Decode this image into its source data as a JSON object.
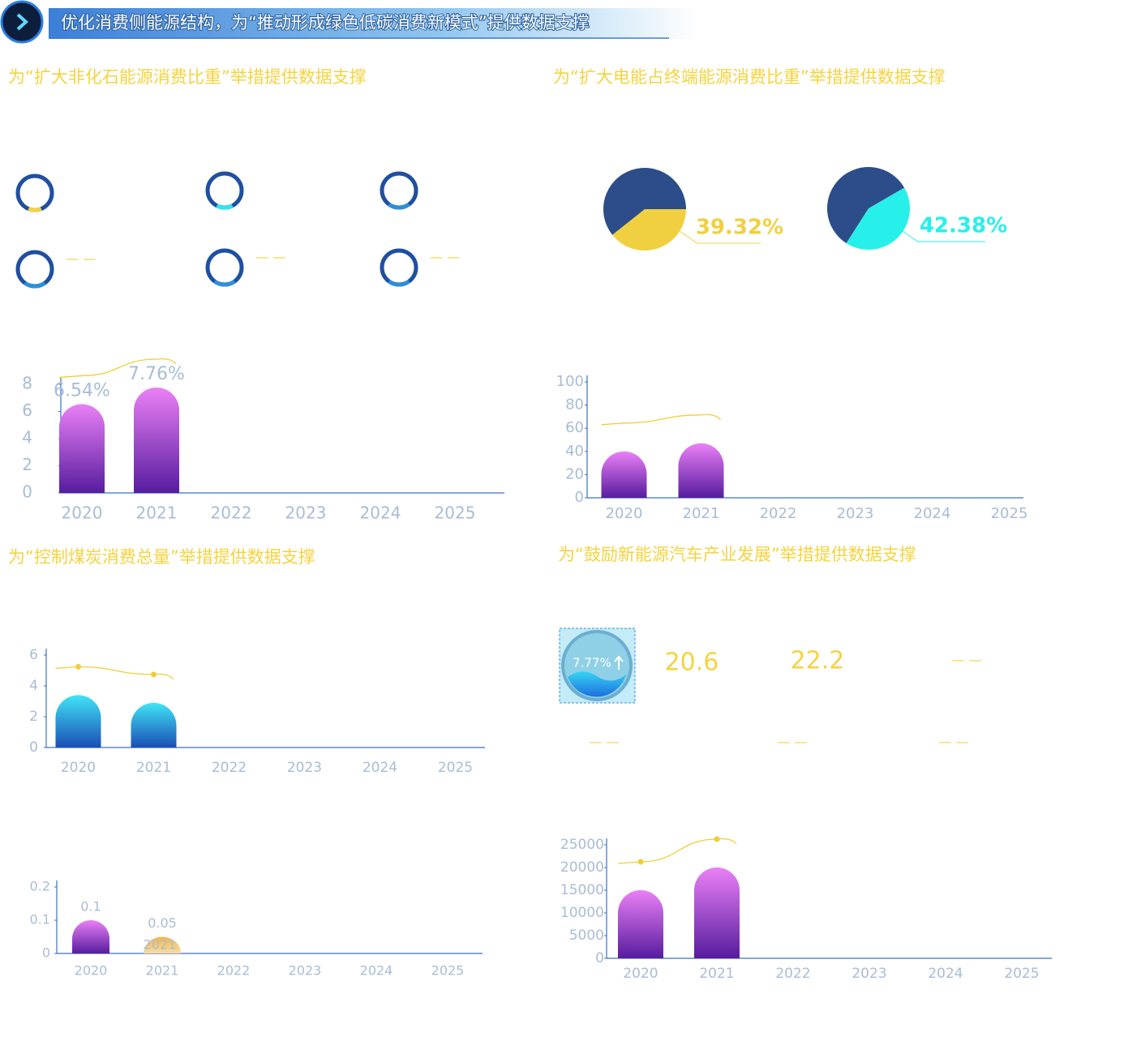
{
  "header": {
    "title": "优化消费侧能源结构，为“推动形成绿色低碳消费新模式”提供数据支撑"
  },
  "panels": [
    {
      "title": "为“扩大非化石能源消费比重”举措提供数据支撑"
    },
    {
      "title": "为“扩大电能占终端能源消费比重”举措提供数据支撑"
    },
    {
      "title": "为“控制煤炭消费总量”举措提供数据支撑"
    },
    {
      "title": "为“鼓励新能源汽车产业发展”举措提供数据支撑"
    }
  ],
  "rings": [
    {
      "value": 12,
      "color": "#f5d33f"
    },
    {
      "value": 15,
      "color": "#27e8f0"
    },
    {
      "value": 20,
      "color": "#2f8fd8"
    },
    {
      "value": 20,
      "color": "#2f8fd8",
      "text": "— —"
    },
    {
      "value": 20,
      "color": "#2f8fd8",
      "text": "— —"
    },
    {
      "value": 20,
      "color": "#2f8fd8",
      "text": "— —"
    }
  ],
  "badge": {
    "value": 7.77,
    "label": "7.77%"
  },
  "stats": [
    {
      "value": 20.6
    },
    {
      "value": 22.2
    },
    {
      "text": "— —"
    },
    {
      "text": "— —"
    },
    {
      "text": "— —"
    },
    {
      "text": "— —"
    }
  ],
  "chart_data": [
    {
      "type": "pie",
      "values": [
        39.32,
        60.68
      ],
      "value_labels": [
        "39.32%",
        null
      ],
      "colors": [
        "#f0d040",
        "#2c4d8a"
      ]
    },
    {
      "type": "pie",
      "values": [
        42.38,
        57.62
      ],
      "value_labels": [
        "42.38%",
        null
      ],
      "colors": [
        "#27f0ea",
        "#2c4d8a"
      ]
    },
    {
      "type": "bar",
      "categories": [
        "2020",
        "2021",
        "2022",
        "2023",
        "2024",
        "2025"
      ],
      "values": [
        6.54,
        7.76,
        null,
        null,
        null,
        null
      ],
      "value_labels": [
        "6.54%",
        "7.76%",
        null,
        null,
        null,
        null
      ],
      "ylim": [
        0,
        8
      ],
      "yticks": [
        0,
        2,
        4,
        6,
        8
      ],
      "color": "purple",
      "trend_line": true
    },
    {
      "type": "bar",
      "categories": [
        "2020",
        "2021",
        "2022",
        "2023",
        "2024",
        "2025"
      ],
      "values": [
        40,
        47,
        null,
        null,
        null,
        null
      ],
      "ylim": [
        0,
        100
      ],
      "yticks": [
        0,
        20,
        40,
        60,
        80,
        100
      ],
      "color": "purple",
      "trend_line": true
    },
    {
      "type": "bar",
      "categories": [
        "2020",
        "2021",
        "2022",
        "2023",
        "2024",
        "2025"
      ],
      "values": [
        3.4,
        2.9,
        null,
        null,
        null,
        null
      ],
      "ylim": [
        0,
        6
      ],
      "yticks": [
        0,
        2,
        4,
        6
      ],
      "color": "blue",
      "trend_line": true,
      "trend_markers": true
    },
    {
      "type": "bar",
      "categories": [
        "2020",
        "2021",
        "2022",
        "2023",
        "2024",
        "2025"
      ],
      "values": [
        0.1,
        0.05,
        null,
        null,
        null,
        null
      ],
      "value_labels": [
        "0.1",
        "0.05",
        null,
        null,
        null,
        null
      ],
      "bar_colors": [
        "purple",
        "orange"
      ],
      "annotation": "2021",
      "ylim": [
        0,
        0.2
      ],
      "yticks": [
        0,
        0.1,
        0.2
      ],
      "color": "purple"
    },
    {
      "type": "bar",
      "categories": [
        "2020",
        "2021",
        "2022",
        "2023",
        "2024",
        "2025"
      ],
      "values": [
        15000,
        20000,
        null,
        null,
        null,
        null
      ],
      "ylim": [
        0,
        25000
      ],
      "yticks": [
        0,
        5000,
        10000,
        15000,
        20000,
        25000
      ],
      "color": "purple",
      "trend_line": true,
      "trend_markers": true
    }
  ]
}
